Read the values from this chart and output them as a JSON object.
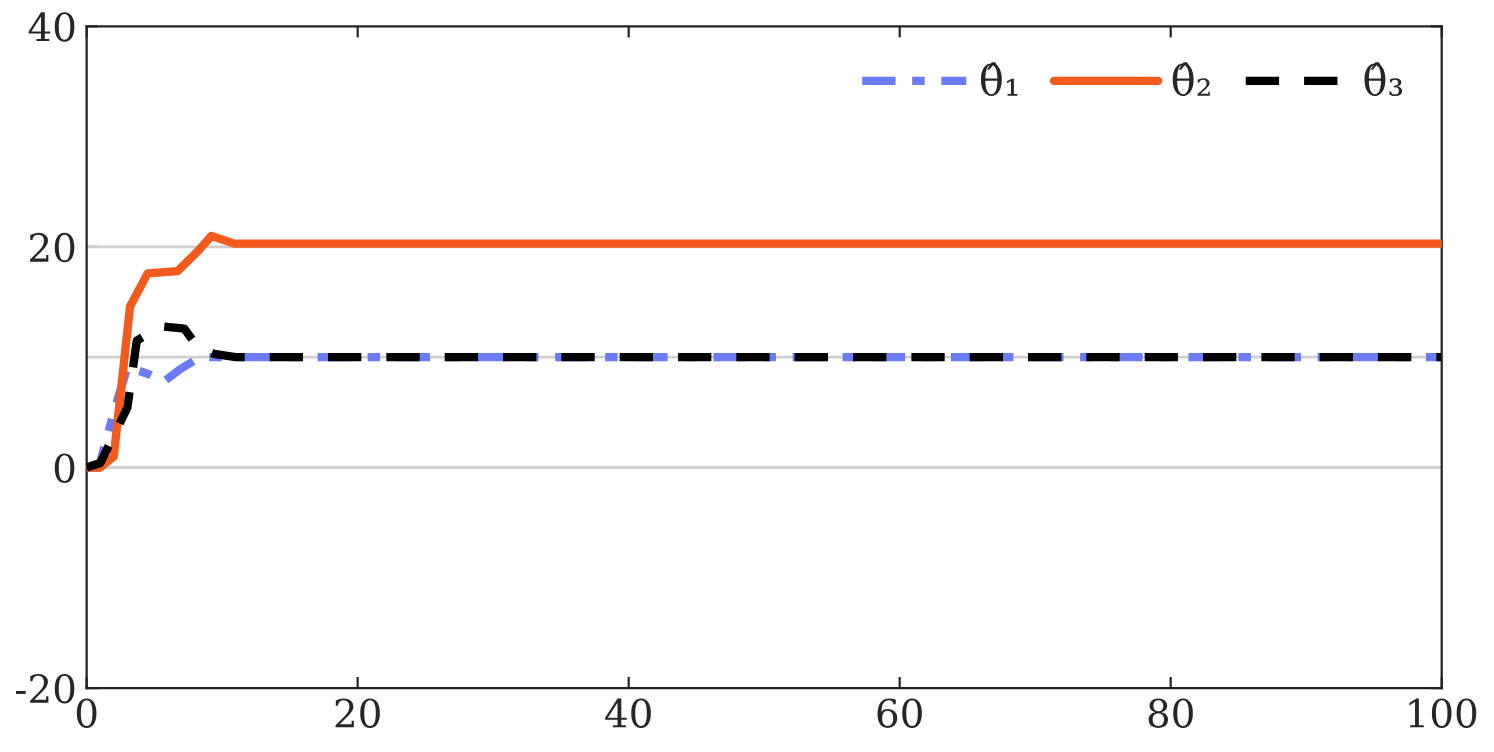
{
  "chart_data": {
    "type": "line",
    "series": [
      {
        "name": "θ̂₁",
        "color": "#6b7bf5",
        "line_style": "dashdot",
        "x": [
          0,
          0.9,
          2,
          3,
          4.5,
          5.7,
          7,
          8.1,
          9,
          10,
          20,
          40,
          60,
          80,
          100
        ],
        "values": [
          0,
          0,
          5,
          9.1,
          8.5,
          7.8,
          9,
          9.8,
          10,
          10,
          10,
          10,
          10,
          10,
          10
        ]
      },
      {
        "name": "θ̂₂",
        "color": "#f25a1e",
        "line_style": "solid",
        "x": [
          0,
          1,
          2,
          3.2,
          4.5,
          6.7,
          8.2,
          9.2,
          10.9,
          20,
          40,
          60,
          80,
          100
        ],
        "values": [
          0,
          0,
          1,
          14.6,
          17.6,
          17.8,
          19.6,
          21,
          20.3,
          20.3,
          20.3,
          20.3,
          20.3,
          20.3
        ]
      },
      {
        "name": "θ̂₃",
        "color": "#000000",
        "line_style": "dashed",
        "x": [
          0,
          1,
          3,
          3.7,
          5.5,
          7.2,
          8.2,
          9.4,
          11,
          20,
          40,
          60,
          80,
          100
        ],
        "values": [
          0,
          0.4,
          5.4,
          11.5,
          12.8,
          12.6,
          10.9,
          10.3,
          10,
          10,
          10,
          10,
          10,
          10
        ]
      }
    ],
    "xlim": [
      0,
      100
    ],
    "xticks": [
      0,
      20,
      40,
      60,
      80,
      100
    ],
    "ylim": [
      -20,
      40
    ],
    "yticks": [
      -20,
      0,
      20,
      40
    ],
    "ref_lines": [
      {
        "axis": "y",
        "value": 0,
        "color": "#d0d0d0"
      },
      {
        "axis": "y",
        "value": 10,
        "color": "#d0d0d0"
      },
      {
        "axis": "y",
        "value": 20,
        "color": "#d0d0d0"
      }
    ],
    "legend": "top right",
    "grid": false
  }
}
